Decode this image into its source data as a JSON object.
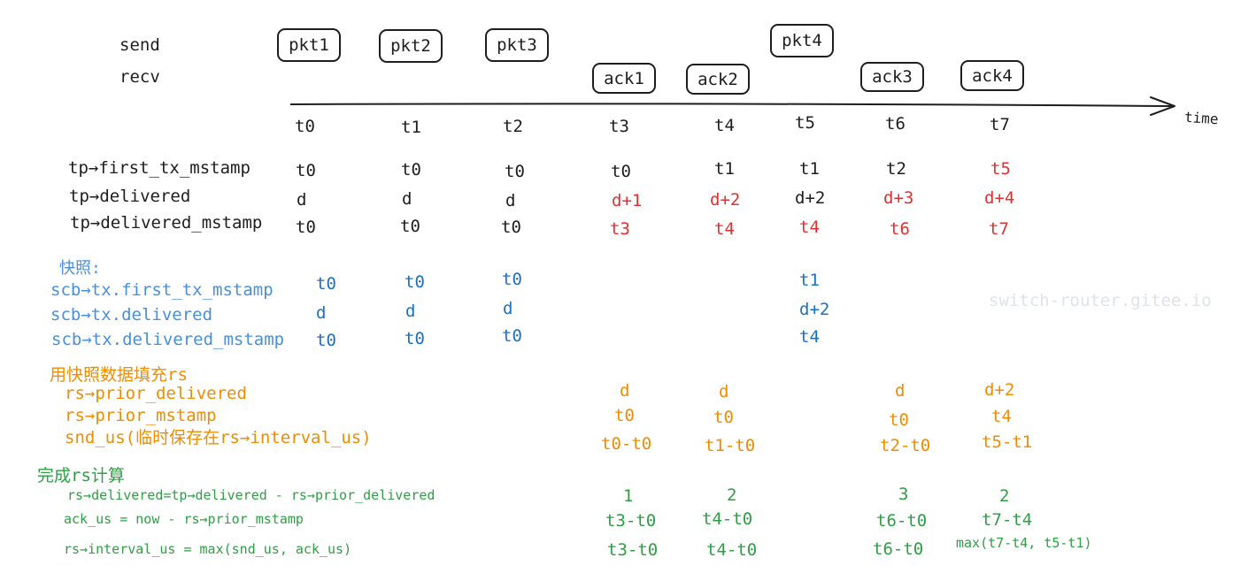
{
  "rows": {
    "send": "send",
    "recv": "recv"
  },
  "packets": [
    "pkt1",
    "pkt2",
    "pkt3",
    "pkt4"
  ],
  "acks": [
    "ack1",
    "ack2",
    "ack3",
    "ack4"
  ],
  "axis_label": "time",
  "times": [
    "t0",
    "t1",
    "t2",
    "t3",
    "t4",
    "t5",
    "t6",
    "t7"
  ],
  "tp": {
    "labels": [
      "tp→first_tx_mstamp",
      "tp→delivered",
      "tp→delivered_mstamp"
    ],
    "first_tx_mstamp": [
      "t0",
      "t0",
      "t0",
      "t0",
      "t1",
      "t1",
      "t2",
      "t5"
    ],
    "delivered": [
      "d",
      "d",
      "d",
      "d+1",
      "d+2",
      "d+2",
      "d+3",
      "d+4"
    ],
    "delivered_mstamp": [
      "t0",
      "t0",
      "t0",
      "t3",
      "t4",
      "t4",
      "t6",
      "t7"
    ]
  },
  "snapshot": {
    "title": "快照:",
    "labels": [
      "scb→tx.first_tx_mstamp",
      "scb→tx.delivered",
      "scb→tx.delivered_mstamp"
    ],
    "first_tx_mstamp": [
      "t0",
      "t0",
      "t0",
      "t1"
    ],
    "delivered": [
      "d",
      "d",
      "d",
      "d+2"
    ],
    "delivered_mstamp": [
      "t0",
      "t0",
      "t0",
      "t4"
    ]
  },
  "fill": {
    "title": "用快照数据填充rs",
    "labels": [
      "rs→prior_delivered",
      "rs→prior_mstamp",
      "snd_us(临时保存在rs→interval_us)"
    ],
    "prior_delivered": [
      "d",
      "d",
      "d",
      "d+2"
    ],
    "prior_mstamp": [
      "t0",
      "t0",
      "t0",
      "t4"
    ],
    "snd_us": [
      "t0-t0",
      "t1-t0",
      "t2-t0",
      "t5-t1"
    ]
  },
  "compute": {
    "title": "完成rs计算",
    "labels": [
      "rs→delivered=tp→delivered - rs→prior_delivered",
      "ack_us = now - rs→prior_mstamp",
      "rs→interval_us = max(snd_us, ack_us)"
    ],
    "delivered": [
      "1",
      "2",
      "3",
      "2"
    ],
    "ack_us": [
      "t3-t0",
      "t4-t0",
      "t6-t0",
      "t7-t4"
    ],
    "interval_us": [
      "t3-t0",
      "t4-t0",
      "t6-t0",
      "max(t7-t4, t5-t1)"
    ]
  },
  "watermark": "switch-router.gitee.io"
}
